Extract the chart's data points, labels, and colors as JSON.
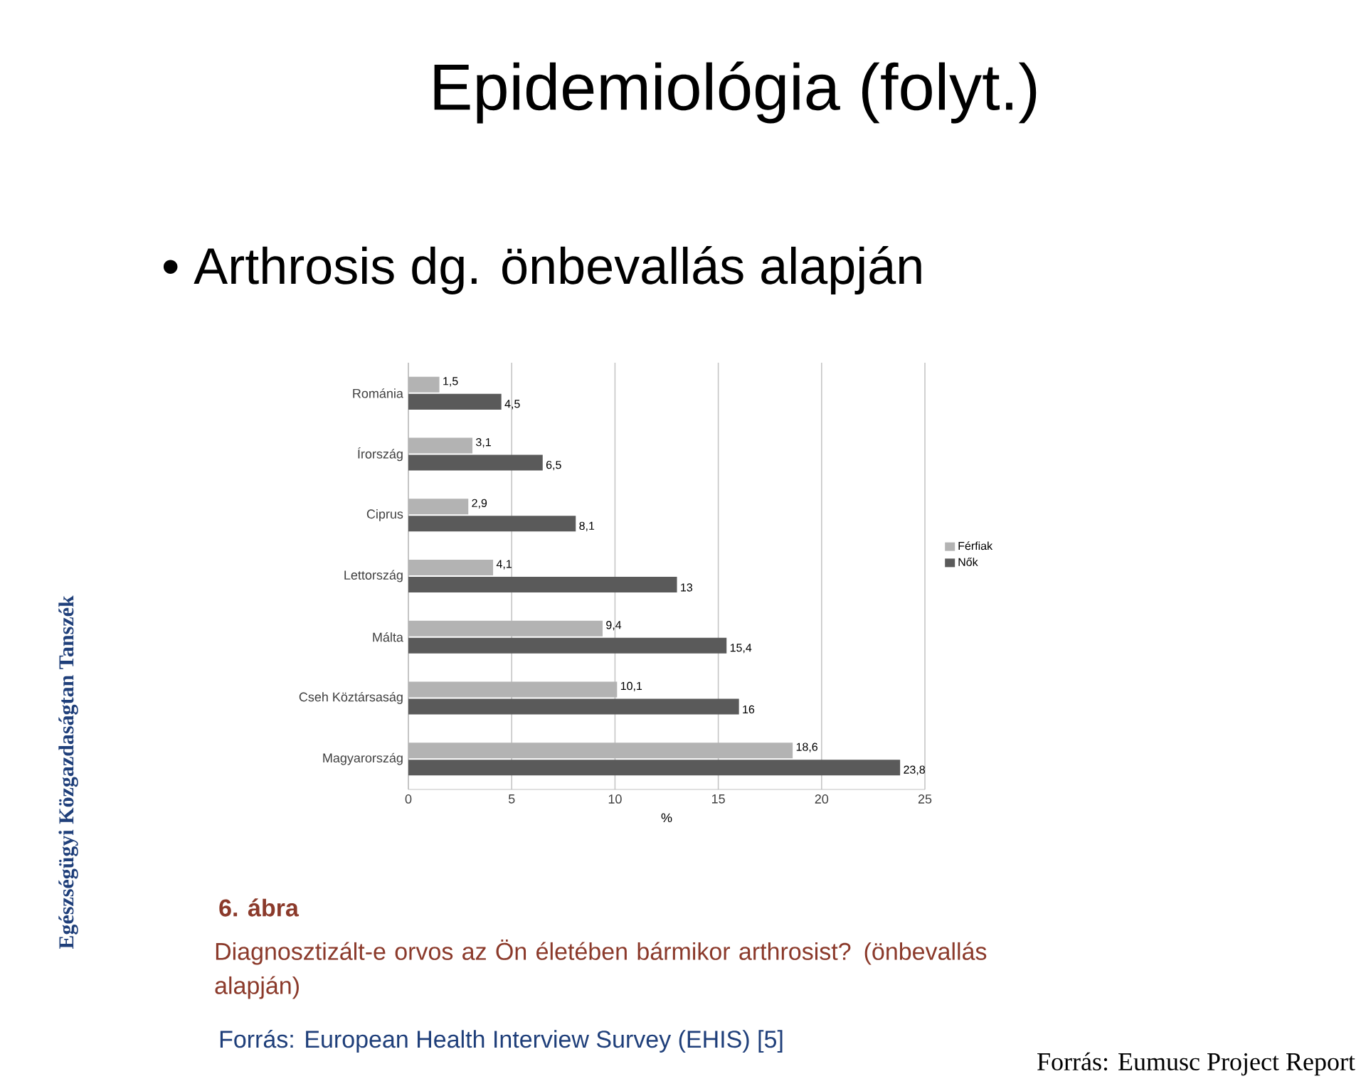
{
  "chart_data": {
    "type": "bar",
    "orientation": "horizontal",
    "title": "Epidemiológia (folyt.)",
    "subtitle": "• Arthrosis dg. önbevallás alapján",
    "xlabel": "%",
    "categories": [
      "Románia",
      "Írország",
      "Ciprus",
      "Lettország",
      "Málta",
      "Cseh Köztársaság",
      "Magyarország"
    ],
    "series": [
      {
        "name": "Férfiak",
        "color": "#b3b3b3",
        "values": [
          1.5,
          3.1,
          2.9,
          4.1,
          9.4,
          10.1,
          18.6
        ],
        "value_labels": [
          "1,5",
          "3,1",
          "2,9",
          "4,1",
          "9,4",
          "10,1",
          "18,6"
        ]
      },
      {
        "name": "Nők",
        "color": "#5a5a5a",
        "values": [
          4.5,
          6.5,
          8.1,
          13,
          15.4,
          16,
          23.8
        ],
        "value_labels": [
          "4,5",
          "6,5",
          "8,1",
          "13",
          "15,4",
          "16",
          "23,8"
        ]
      }
    ],
    "xlim": [
      0,
      25
    ],
    "xticks": [
      0,
      5,
      10,
      15,
      20,
      25
    ],
    "grid": "x",
    "legend": "right",
    "annotations": [
      "6. ábra",
      "Diagnosztizált-e orvos az Ön életében bármikor arthrosist? (önbevallás alapján)",
      "Forrás: European Health Interview Survey (EHIS) [5]",
      "Forrás: Eumusc Project Report",
      "Egészségügyi Közgazdaságtan Tanszék"
    ]
  }
}
